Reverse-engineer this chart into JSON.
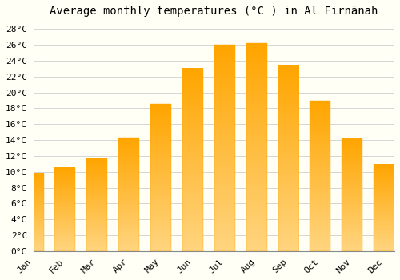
{
  "title": "Average monthly temperatures (°C ) in Al Firnānah",
  "months": [
    "Jan",
    "Feb",
    "Mar",
    "Apr",
    "May",
    "Jun",
    "Jul",
    "Aug",
    "Sep",
    "Oct",
    "Nov",
    "Dec"
  ],
  "temperatures": [
    9.8,
    10.5,
    11.6,
    14.3,
    18.5,
    23.0,
    26.0,
    26.2,
    23.4,
    18.9,
    14.2,
    10.9
  ],
  "bar_color_top": "#FFA500",
  "bar_color_bottom": "#FFD580",
  "background_color": "#FFFFF5",
  "grid_color": "#d0d0d0",
  "ylim_max": 29,
  "ytick_step": 2,
  "title_fontsize": 10,
  "tick_fontsize": 8,
  "font_family": "monospace",
  "bar_width": 0.65
}
